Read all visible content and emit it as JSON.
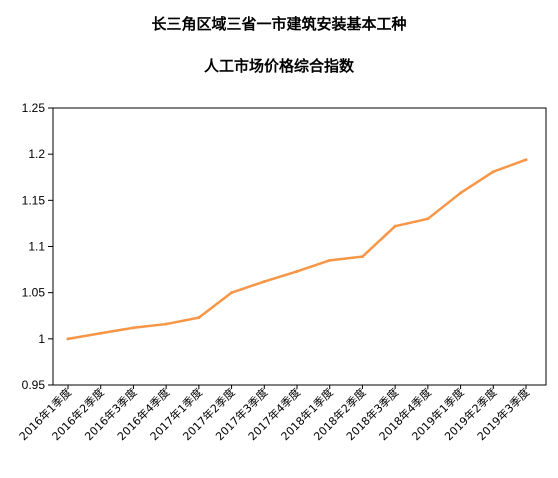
{
  "chart_data": {
    "type": "line",
    "title": "长三角区域三省一市建筑安装基本工种",
    "subtitle": "人工市场价格综合指数",
    "xlabel": "",
    "ylabel": "",
    "categories": [
      "2016年1季度",
      "2016年2季度",
      "2016年3季度",
      "2016年4季度",
      "2017年1季度",
      "2017年2季度",
      "2017年3季度",
      "2017年4季度",
      "2018年1季度",
      "2018年2季度",
      "2018年3季度",
      "2018年4季度",
      "2019年1季度",
      "2019年2季度",
      "2019年3季度"
    ],
    "series": [
      {
        "name": "",
        "color": "#F79646",
        "values": [
          1.0,
          1.006,
          1.012,
          1.016,
          1.023,
          1.05,
          1.062,
          1.073,
          1.085,
          1.089,
          1.122,
          1.13,
          1.158,
          1.181,
          1.194
        ]
      }
    ],
    "ylim": [
      0.95,
      1.25
    ],
    "yticks": [
      "0.95",
      "1",
      "1.05",
      "1.1",
      "1.15",
      "1.2",
      "1.25"
    ],
    "grid": false,
    "legend": "none"
  }
}
